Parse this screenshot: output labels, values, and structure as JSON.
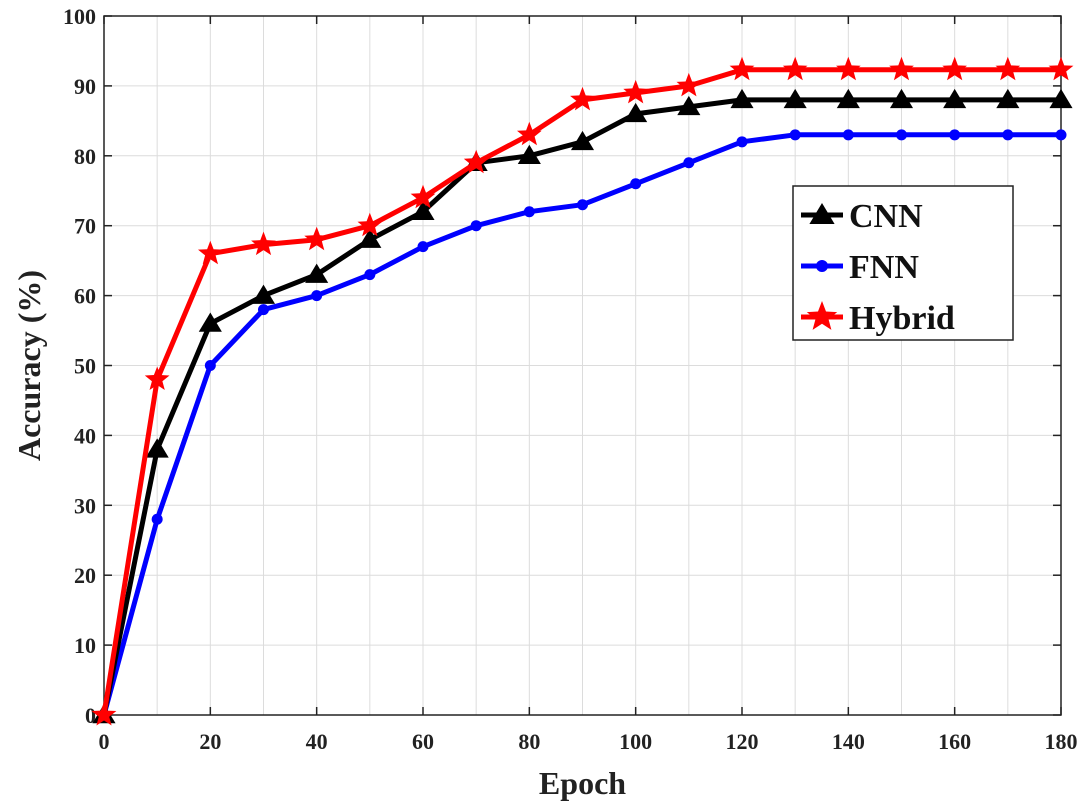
{
  "chart_data": {
    "type": "line",
    "title": "",
    "xlabel": "Epoch",
    "ylabel": "Accuracy (%)",
    "xlim": [
      0,
      180
    ],
    "ylim": [
      0,
      100
    ],
    "xticks": [
      0,
      20,
      40,
      60,
      80,
      100,
      120,
      140,
      160,
      180
    ],
    "yticks": [
      0,
      10,
      20,
      30,
      40,
      50,
      60,
      70,
      80,
      90,
      100
    ],
    "grid": true,
    "legend_position": "right",
    "x": [
      0,
      10,
      20,
      30,
      40,
      50,
      60,
      70,
      80,
      90,
      100,
      110,
      120,
      130,
      140,
      150,
      160,
      170,
      180
    ],
    "series": [
      {
        "name": "CNN",
        "color": "#000000",
        "marker": "triangle",
        "values": [
          0,
          38,
          56,
          60,
          63,
          68,
          72,
          79,
          80,
          82,
          86,
          87,
          88,
          88,
          88,
          88,
          88,
          88,
          88
        ]
      },
      {
        "name": "FNN",
        "color": "#0000ff",
        "marker": "circle",
        "values": [
          0,
          28,
          50,
          58,
          60,
          63,
          67,
          70,
          72,
          73,
          76,
          79,
          82,
          83,
          83,
          83,
          83,
          83,
          83
        ]
      },
      {
        "name": "Hybrid",
        "color": "#ff0000",
        "marker": "star",
        "values": [
          0,
          48,
          66,
          67.3,
          68,
          70,
          74,
          79,
          83,
          88,
          89,
          90,
          92.3,
          92.3,
          92.3,
          92.3,
          92.3,
          92.3,
          92.3
        ]
      }
    ]
  }
}
